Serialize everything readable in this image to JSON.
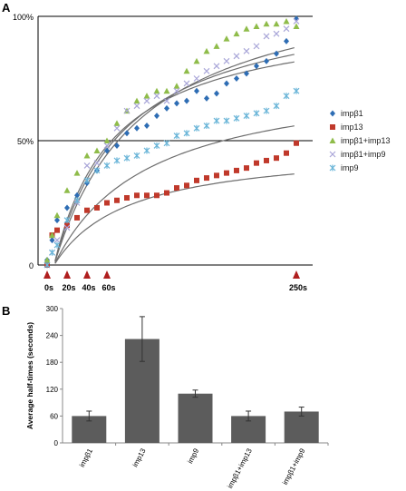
{
  "panel_a": {
    "label": "A",
    "y_ticks": [
      "100%",
      "50%",
      "0"
    ],
    "time_markers": [
      "0s",
      "20s",
      "40s",
      "60s",
      "250s"
    ],
    "marker_color": "#b01e1e"
  },
  "panel_b": {
    "label": "B"
  },
  "chart_data": [
    {
      "type": "scatter",
      "x_unit": "s",
      "y_unit": "%",
      "xlim": [
        0,
        265
      ],
      "ylim": [
        0,
        100
      ],
      "y_ticks": [
        0,
        50,
        100
      ],
      "x_markers": [
        0,
        20,
        40,
        60,
        250
      ],
      "legend_position": "right",
      "series": [
        {
          "name": "impβ1",
          "marker": "diamond",
          "color": "#2e6db4",
          "x": [
            0,
            5,
            10,
            20,
            30,
            40,
            50,
            60,
            70,
            80,
            90,
            100,
            110,
            120,
            130,
            140,
            150,
            160,
            170,
            180,
            190,
            200,
            210,
            220,
            230,
            240,
            250
          ],
          "y": [
            2,
            10,
            18,
            23,
            28,
            33,
            38,
            46,
            48,
            53,
            55,
            56,
            60,
            63,
            65,
            66,
            70,
            67,
            69,
            73,
            75,
            77,
            80,
            82,
            85,
            90,
            99
          ]
        },
        {
          "name": "imp13",
          "marker": "square",
          "color": "#c0392b",
          "x": [
            0,
            5,
            10,
            20,
            30,
            40,
            50,
            60,
            70,
            80,
            90,
            100,
            110,
            120,
            130,
            140,
            150,
            160,
            170,
            180,
            190,
            200,
            210,
            220,
            230,
            240,
            250
          ],
          "y": [
            0,
            12,
            14,
            16,
            19,
            22,
            23,
            25,
            26,
            27,
            28,
            28,
            28,
            29,
            31,
            32,
            34,
            35,
            36,
            37,
            38,
            39,
            41,
            42,
            43,
            45,
            49
          ]
        },
        {
          "name": "impβ1+imp13",
          "marker": "triangle",
          "color": "#8fbc4a",
          "x": [
            0,
            5,
            10,
            20,
            30,
            40,
            50,
            60,
            70,
            80,
            90,
            100,
            110,
            120,
            130,
            140,
            150,
            160,
            170,
            180,
            190,
            200,
            210,
            220,
            230,
            240,
            250
          ],
          "y": [
            2,
            12,
            20,
            30,
            37,
            44,
            46,
            50,
            57,
            62,
            66,
            68,
            70,
            70,
            72,
            78,
            82,
            86,
            88,
            91,
            93,
            95,
            96,
            97,
            97,
            98,
            96
          ]
        },
        {
          "name": "impβ1+imp9",
          "marker": "x",
          "color": "#a9a6d8",
          "x": [
            0,
            5,
            10,
            20,
            30,
            40,
            50,
            60,
            70,
            80,
            90,
            100,
            110,
            120,
            130,
            140,
            150,
            160,
            170,
            180,
            190,
            200,
            210,
            220,
            230,
            240,
            250
          ],
          "y": [
            0,
            5,
            10,
            15,
            25,
            40,
            41,
            48,
            55,
            62,
            64,
            66,
            68,
            66,
            70,
            73,
            75,
            78,
            80,
            82,
            84,
            86,
            88,
            92,
            93,
            95,
            98
          ]
        },
        {
          "name": "imp9",
          "marker": "asterisk",
          "color": "#6ab5d8",
          "x": [
            0,
            5,
            10,
            20,
            30,
            40,
            50,
            60,
            70,
            80,
            90,
            100,
            110,
            120,
            130,
            140,
            150,
            160,
            170,
            180,
            190,
            200,
            210,
            220,
            230,
            240,
            250
          ],
          "y": [
            0,
            5,
            8,
            18,
            26,
            34,
            38,
            40,
            42,
            43,
            44,
            46,
            48,
            49,
            52,
            53,
            55,
            56,
            58,
            58,
            59,
            60,
            61,
            62,
            64,
            68,
            70
          ]
        }
      ],
      "fit_curves": [
        {
          "series": "impβ1+imp13",
          "plateau": 102,
          "half_time": 60
        },
        {
          "series": "impβ1+imp9",
          "plateau": 110,
          "half_time": 72
        },
        {
          "series": "impβ1",
          "plateau": 120,
          "half_time": 90
        },
        {
          "series": "imp9",
          "plateau": 78,
          "half_time": 95
        },
        {
          "series": "imp13",
          "plateau": 48,
          "half_time": 75
        }
      ],
      "fit_color": "#6e6e6e"
    },
    {
      "type": "bar",
      "ylabel": "Average half-times (seconds)",
      "ylim": [
        0,
        300
      ],
      "y_ticks": [
        0,
        60,
        120,
        180,
        240,
        300
      ],
      "categories": [
        "impβ1",
        "imp13",
        "imp9",
        "impβ1+imp13",
        "impβ1+imp9"
      ],
      "values": [
        60,
        232,
        110,
        60,
        70
      ],
      "errors": [
        11,
        50,
        8,
        11,
        10
      ],
      "bar_color": "#5c5c5c",
      "error_color": "#333333"
    }
  ]
}
